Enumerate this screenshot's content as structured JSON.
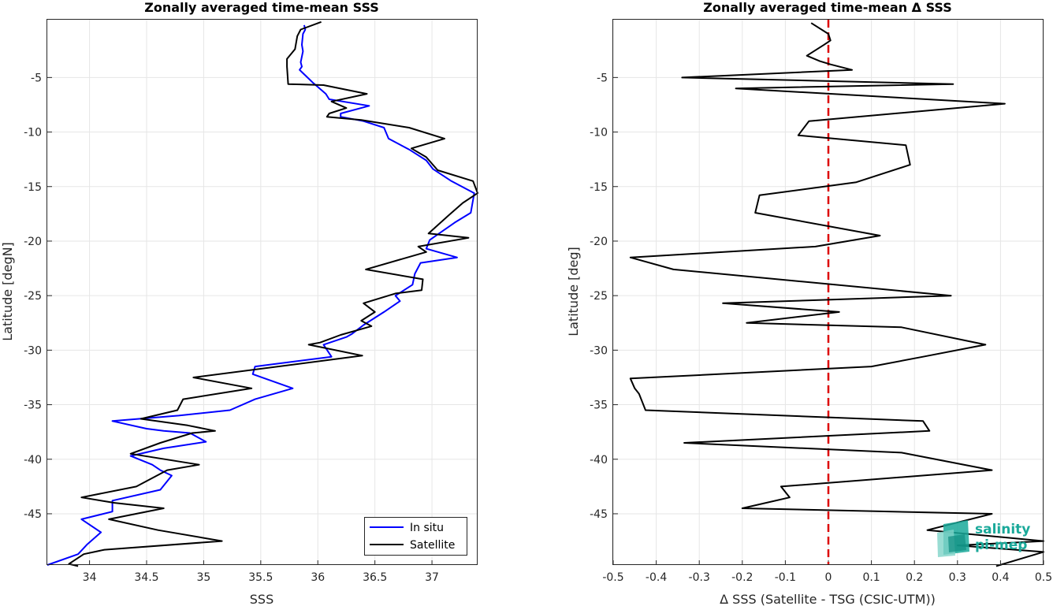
{
  "chart_data": [
    {
      "type": "line",
      "title": "Zonally averaged time-mean SSS",
      "xlabel": "SSS",
      "ylabel": "Latitude [degN]",
      "xlim": [
        33.63,
        37.4
      ],
      "ylim": [
        -49.7,
        0.3
      ],
      "xticks": [
        34,
        34.5,
        35,
        35.5,
        36,
        36.5,
        37
      ],
      "xtick_labels": [
        "34",
        "34.5",
        "35",
        "35.5",
        "36",
        "36.5",
        "37"
      ],
      "yticks": [
        -5,
        -10,
        -15,
        -20,
        -25,
        -30,
        -35,
        -40,
        -45
      ],
      "ytick_labels": [
        "-5",
        "-10",
        "-15",
        "-20",
        "-25",
        "-30",
        "-35",
        "-40",
        "-45"
      ],
      "grid": true,
      "legend_position": "bottom-right",
      "series": [
        {
          "name": "In situ",
          "color": "#0000ff",
          "points": [
            [
              35.88,
              -0.2
            ],
            [
              35.89,
              -0.6
            ],
            [
              35.87,
              -1.0
            ],
            [
              35.86,
              -2.0
            ],
            [
              35.87,
              -2.6
            ],
            [
              35.85,
              -3.6
            ],
            [
              35.86,
              -4.0
            ],
            [
              35.84,
              -4.3
            ],
            [
              35.91,
              -5.0
            ],
            [
              35.96,
              -5.5
            ],
            [
              36.07,
              -6.5
            ],
            [
              36.1,
              -7.0
            ],
            [
              36.45,
              -7.6
            ],
            [
              36.2,
              -8.3
            ],
            [
              36.2,
              -8.6
            ],
            [
              36.4,
              -9.0
            ],
            [
              36.58,
              -9.6
            ],
            [
              36.62,
              -10.6
            ],
            [
              36.8,
              -11.6
            ],
            [
              36.95,
              -12.6
            ],
            [
              37.01,
              -13.4
            ],
            [
              37.17,
              -14.5
            ],
            [
              37.37,
              -15.6
            ],
            [
              37.34,
              -17.4
            ],
            [
              37.2,
              -18.3
            ],
            [
              36.98,
              -19.9
            ],
            [
              36.95,
              -20.7
            ],
            [
              37.22,
              -21.5
            ],
            [
              36.9,
              -22.0
            ],
            [
              36.85,
              -23.0
            ],
            [
              36.83,
              -24.0
            ],
            [
              36.68,
              -25.0
            ],
            [
              36.72,
              -25.5
            ],
            [
              36.58,
              -26.5
            ],
            [
              36.4,
              -27.7
            ],
            [
              36.3,
              -28.5
            ],
            [
              36.25,
              -28.8
            ],
            [
              36.05,
              -29.5
            ],
            [
              36.12,
              -30.6
            ],
            [
              35.45,
              -31.5
            ],
            [
              35.43,
              -32.2
            ],
            [
              35.78,
              -33.5
            ],
            [
              35.45,
              -34.5
            ],
            [
              35.23,
              -35.5
            ],
            [
              34.78,
              -36.0
            ],
            [
              34.2,
              -36.5
            ],
            [
              34.5,
              -37.2
            ],
            [
              34.65,
              -37.4
            ],
            [
              34.88,
              -37.6
            ],
            [
              35.02,
              -38.4
            ],
            [
              34.65,
              -39.0
            ],
            [
              34.36,
              -39.7
            ],
            [
              34.55,
              -40.5
            ],
            [
              34.62,
              -41.0
            ],
            [
              34.72,
              -41.5
            ],
            [
              34.62,
              -42.8
            ],
            [
              34.2,
              -43.8
            ],
            [
              34.2,
              -44.8
            ],
            [
              33.93,
              -45.5
            ],
            [
              34.1,
              -46.7
            ],
            [
              33.98,
              -47.8
            ],
            [
              33.9,
              -48.7
            ],
            [
              33.63,
              -49.7
            ]
          ]
        },
        {
          "name": "Satellite",
          "color": "#000000",
          "points": [
            [
              36.03,
              0.1
            ],
            [
              35.85,
              -0.6
            ],
            [
              35.82,
              -1.2
            ],
            [
              35.8,
              -2.4
            ],
            [
              35.73,
              -3.3
            ],
            [
              35.73,
              -4.0
            ],
            [
              35.74,
              -5.6
            ],
            [
              36.05,
              -5.7
            ],
            [
              36.43,
              -6.5
            ],
            [
              36.12,
              -7.2
            ],
            [
              36.25,
              -7.8
            ],
            [
              36.1,
              -8.3
            ],
            [
              36.08,
              -8.6
            ],
            [
              36.38,
              -8.9
            ],
            [
              36.8,
              -9.6
            ],
            [
              37.11,
              -10.6
            ],
            [
              36.82,
              -11.5
            ],
            [
              36.95,
              -12.3
            ],
            [
              37.05,
              -13.5
            ],
            [
              37.36,
              -14.5
            ],
            [
              37.4,
              -15.6
            ],
            [
              37.27,
              -16.5
            ],
            [
              37.15,
              -17.6
            ],
            [
              36.97,
              -19.3
            ],
            [
              37.32,
              -19.7
            ],
            [
              36.88,
              -20.5
            ],
            [
              36.95,
              -21.0
            ],
            [
              36.42,
              -22.6
            ],
            [
              36.92,
              -23.5
            ],
            [
              36.91,
              -24.5
            ],
            [
              36.68,
              -24.8
            ],
            [
              36.4,
              -25.7
            ],
            [
              36.5,
              -26.5
            ],
            [
              36.38,
              -27.3
            ],
            [
              36.47,
              -27.8
            ],
            [
              36.2,
              -28.6
            ],
            [
              36.02,
              -29.3
            ],
            [
              35.92,
              -29.5
            ],
            [
              36.39,
              -30.5
            ],
            [
              34.91,
              -32.5
            ],
            [
              35.42,
              -33.5
            ],
            [
              34.82,
              -34.5
            ],
            [
              34.77,
              -35.5
            ],
            [
              34.45,
              -36.3
            ],
            [
              34.86,
              -36.9
            ],
            [
              35.1,
              -37.4
            ],
            [
              34.9,
              -37.6
            ],
            [
              34.62,
              -38.5
            ],
            [
              34.36,
              -39.5
            ],
            [
              34.96,
              -40.5
            ],
            [
              34.68,
              -41.0
            ],
            [
              34.41,
              -42.5
            ],
            [
              33.93,
              -43.5
            ],
            [
              34.22,
              -44.0
            ],
            [
              34.65,
              -44.5
            ],
            [
              34.17,
              -45.5
            ],
            [
              34.6,
              -46.5
            ],
            [
              35.16,
              -47.5
            ],
            [
              34.13,
              -48.3
            ],
            [
              33.95,
              -48.7
            ],
            [
              33.82,
              -49.6
            ],
            [
              33.9,
              -49.8
            ]
          ]
        }
      ]
    },
    {
      "type": "line",
      "title": "Zonally averaged time-mean Δ SSS",
      "xlabel": "Δ SSS (Satellite - TSG (CSIC-UTM))",
      "ylabel": "Latitude [deg]",
      "xlim": [
        -0.5,
        0.5
      ],
      "ylim": [
        -49.7,
        0.3
      ],
      "xticks": [
        -0.5,
        -0.4,
        -0.3,
        -0.2,
        -0.1,
        0,
        0.1,
        0.2,
        0.3,
        0.4,
        0.5
      ],
      "xtick_labels": [
        "-0.5",
        "-0.4",
        "-0.3",
        "-0.2",
        "-0.1",
        "0",
        "0.1",
        "0.2",
        "0.3",
        "0.4",
        "0.5"
      ],
      "yticks": [
        -5,
        -10,
        -15,
        -20,
        -25,
        -30,
        -35,
        -40,
        -45
      ],
      "ytick_labels": [
        "-5",
        "-10",
        "-15",
        "-20",
        "-25",
        "-30",
        "-35",
        "-40",
        "-45"
      ],
      "grid": true,
      "reference_line": {
        "x": 0,
        "color": "#dd0000",
        "style": "dashed"
      },
      "series": [
        {
          "color": "#000000",
          "points": [
            [
              -0.04,
              0.0
            ],
            [
              0.0,
              -1.0
            ],
            [
              0.005,
              -1.6
            ],
            [
              -0.01,
              -2.0
            ],
            [
              -0.05,
              -3.0
            ],
            [
              -0.02,
              -3.5
            ],
            [
              0.005,
              -3.8
            ],
            [
              0.055,
              -4.3
            ],
            [
              -0.34,
              -5.0
            ],
            [
              0.29,
              -5.6
            ],
            [
              -0.215,
              -6.0
            ],
            [
              0.41,
              -7.4
            ],
            [
              -0.045,
              -9.0
            ],
            [
              -0.07,
              -10.3
            ],
            [
              0.18,
              -11.2
            ],
            [
              0.19,
              -13.0
            ],
            [
              0.065,
              -14.6
            ],
            [
              -0.16,
              -15.8
            ],
            [
              -0.17,
              -17.4
            ],
            [
              0.12,
              -19.5
            ],
            [
              -0.03,
              -20.5
            ],
            [
              -0.46,
              -21.5
            ],
            [
              -0.36,
              -22.6
            ],
            [
              0.285,
              -25.0
            ],
            [
              -0.245,
              -25.7
            ],
            [
              0.025,
              -26.5
            ],
            [
              -0.19,
              -27.5
            ],
            [
              0.17,
              -27.9
            ],
            [
              0.365,
              -29.5
            ],
            [
              0.22,
              -30.6
            ],
            [
              0.1,
              -31.5
            ],
            [
              -0.46,
              -32.6
            ],
            [
              -0.45,
              -33.5
            ],
            [
              -0.44,
              -34.0
            ],
            [
              -0.425,
              -35.5
            ],
            [
              0.22,
              -36.5
            ],
            [
              0.235,
              -37.4
            ],
            [
              -0.335,
              -38.5
            ],
            [
              0.17,
              -39.4
            ],
            [
              0.38,
              -41.0
            ],
            [
              -0.11,
              -42.5
            ],
            [
              -0.09,
              -43.5
            ],
            [
              -0.2,
              -44.5
            ],
            [
              0.38,
              -45.0
            ],
            [
              0.23,
              -46.5
            ],
            [
              0.5,
              -47.5
            ],
            [
              0.3,
              -47.9
            ],
            [
              0.5,
              -48.5
            ],
            [
              0.39,
              -49.8
            ]
          ]
        }
      ]
    }
  ],
  "logo": {
    "line1": "salinity",
    "line2": "pi-mep",
    "accent": "#1aa99a"
  }
}
